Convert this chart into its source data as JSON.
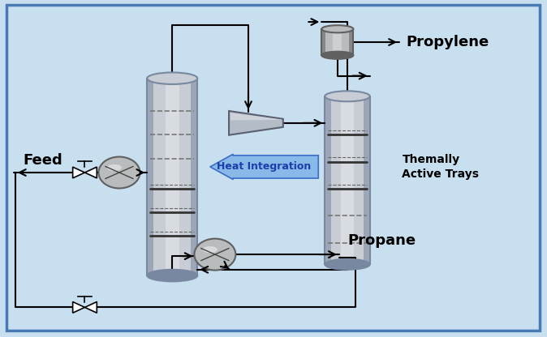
{
  "bg_color": "#c8dff0",
  "border_color": "#4a7ab5",
  "heat_integration_text": "Heat Integration",
  "heat_integration_color": "#1a3faa",
  "label_feed": "Feed",
  "label_propylene": "Propylene",
  "label_propane": "Propane",
  "label_thermally": "Themally\nActive Trays",
  "col_light": "#c8ccd4",
  "col_dark": "#7888a0",
  "col_mid": "#a8b0bc",
  "pump_light": "#b8bcbc",
  "pump_dark": "#606060",
  "pipe_color": "#000000",
  "arrow_color": "#000000",
  "hi_arrow_face": "#7ab0e8",
  "hi_arrow_edge": "#2255bb"
}
